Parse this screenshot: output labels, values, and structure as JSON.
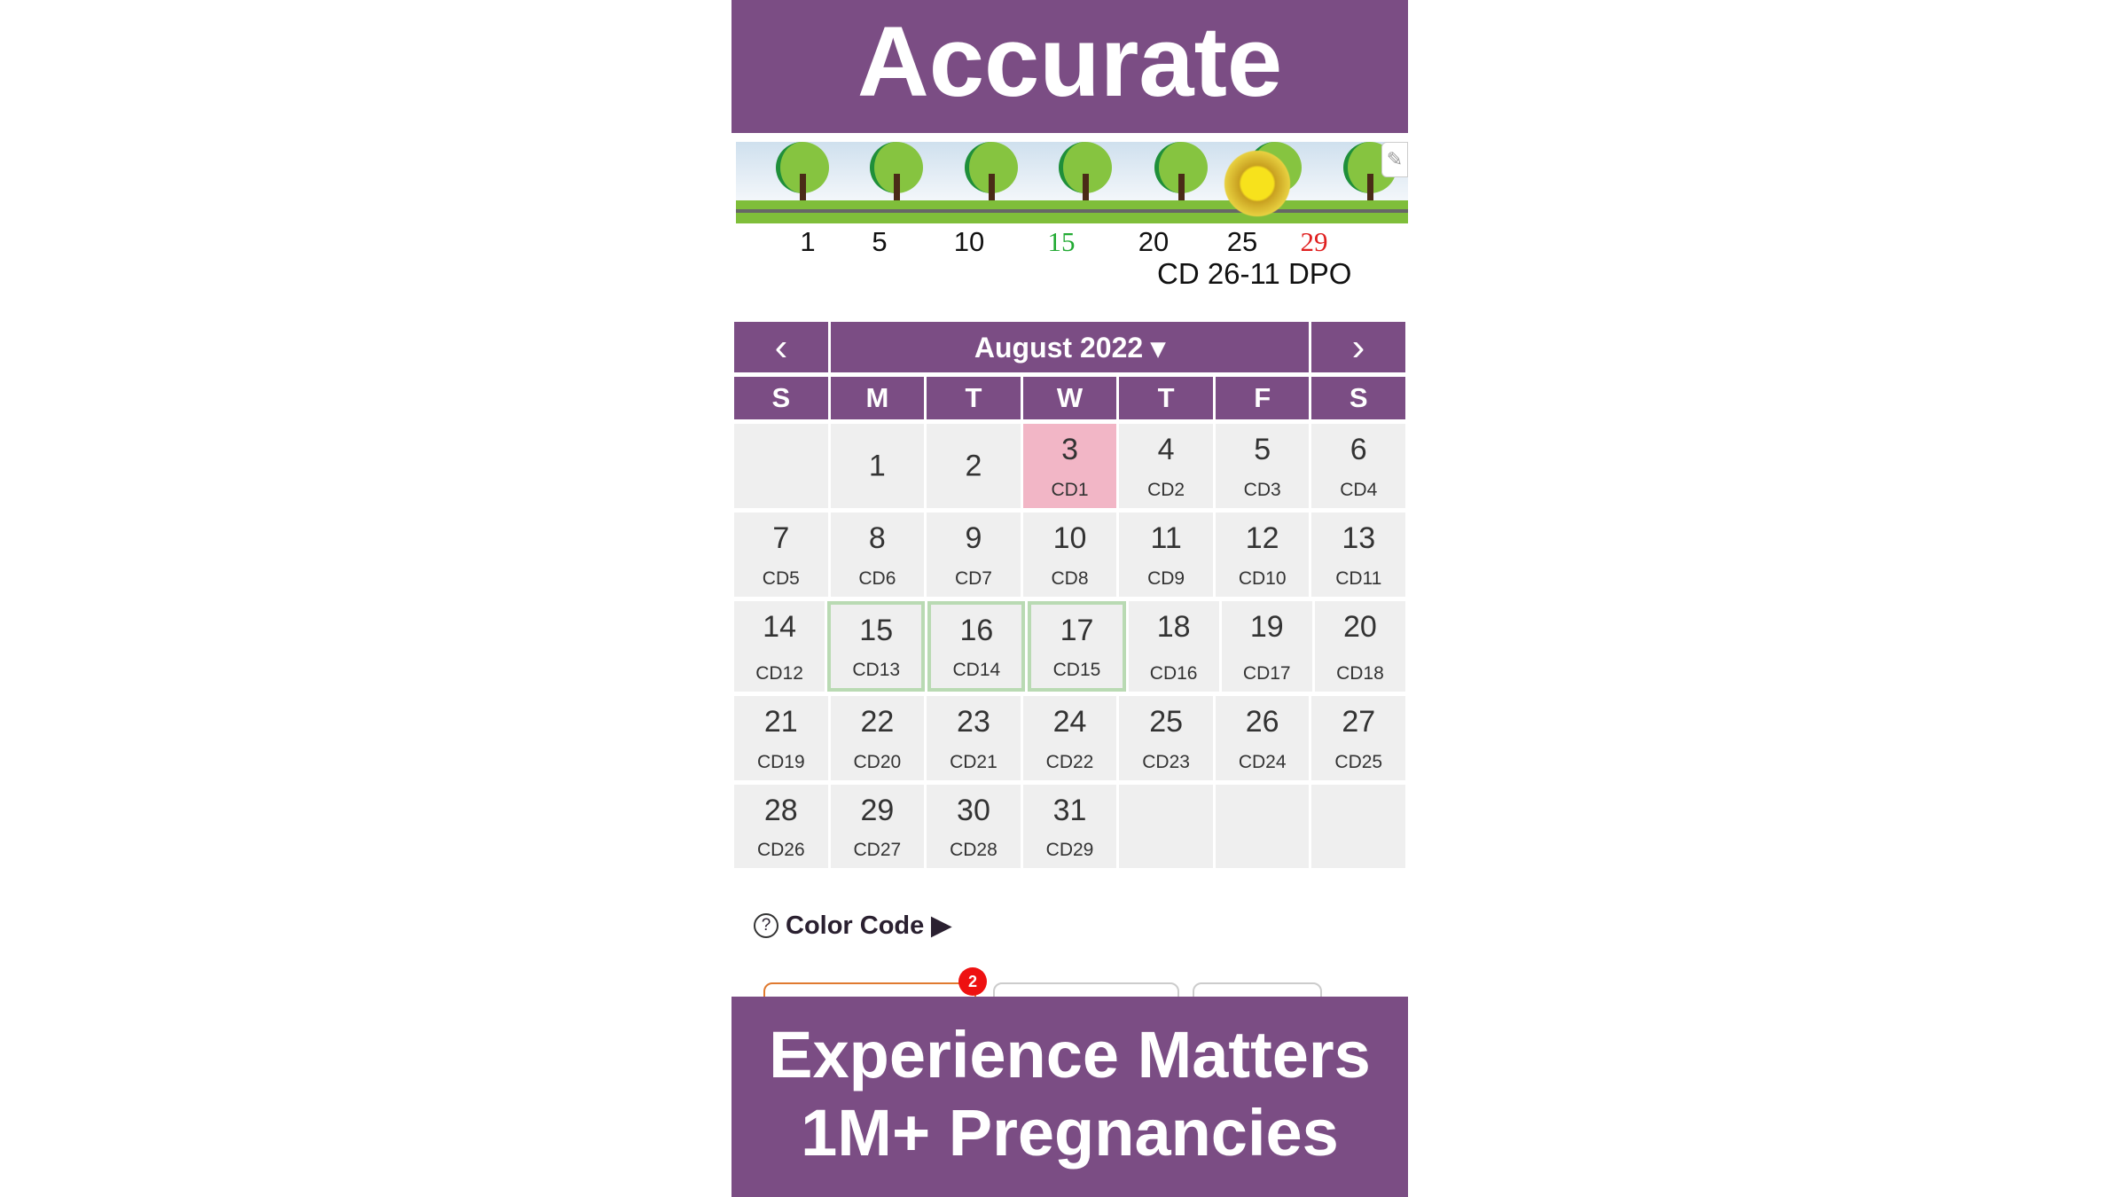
{
  "top_banner": "Accurate",
  "bottom_banner": {
    "line1": "Experience Matters",
    "line2": "1M+ Pregnancies"
  },
  "cycle_strip": {
    "ticks": [
      {
        "label": "1",
        "color": "#111111"
      },
      {
        "label": "5",
        "color": "#111111"
      },
      {
        "label": "10",
        "color": "#111111"
      },
      {
        "label": "15",
        "color": "#22aa33"
      },
      {
        "label": "20",
        "color": "#111111"
      },
      {
        "label": "25",
        "color": "#111111"
      },
      {
        "label": "29",
        "color": "#e02020"
      }
    ],
    "status": "CD 26-11 DPO",
    "edit_icon": "pencil-icon",
    "sun_icon": "sun-icon"
  },
  "calendar": {
    "month_label": "August 2022 ▾",
    "prev": "‹",
    "next": "›",
    "weekdays": [
      "S",
      "M",
      "T",
      "W",
      "T",
      "F",
      "S"
    ],
    "weeks": [
      [
        {
          "day": "",
          "cd": ""
        },
        {
          "day": "1",
          "cd": ""
        },
        {
          "day": "2",
          "cd": ""
        },
        {
          "day": "3",
          "cd": "CD1",
          "style": "pink"
        },
        {
          "day": "4",
          "cd": "CD2"
        },
        {
          "day": "5",
          "cd": "CD3"
        },
        {
          "day": "6",
          "cd": "CD4"
        }
      ],
      [
        {
          "day": "7",
          "cd": "CD5"
        },
        {
          "day": "8",
          "cd": "CD6"
        },
        {
          "day": "9",
          "cd": "CD7"
        },
        {
          "day": "10",
          "cd": "CD8"
        },
        {
          "day": "11",
          "cd": "CD9"
        },
        {
          "day": "12",
          "cd": "CD10"
        },
        {
          "day": "13",
          "cd": "CD11"
        }
      ],
      [
        {
          "day": "14",
          "cd": "CD12"
        },
        {
          "day": "15",
          "cd": "CD13",
          "style": "fertile"
        },
        {
          "day": "16",
          "cd": "CD14",
          "style": "fertile"
        },
        {
          "day": "17",
          "cd": "CD15",
          "style": "fertile"
        },
        {
          "day": "18",
          "cd": "CD16"
        },
        {
          "day": "19",
          "cd": "CD17"
        },
        {
          "day": "20",
          "cd": "CD18"
        }
      ],
      [
        {
          "day": "21",
          "cd": "CD19"
        },
        {
          "day": "22",
          "cd": "CD20"
        },
        {
          "day": "23",
          "cd": "CD21"
        },
        {
          "day": "24",
          "cd": "CD22"
        },
        {
          "day": "25",
          "cd": "CD23"
        },
        {
          "day": "26",
          "cd": "CD24"
        },
        {
          "day": "27",
          "cd": "CD25"
        }
      ],
      [
        {
          "day": "28",
          "cd": "CD26"
        },
        {
          "day": "29",
          "cd": "CD27"
        },
        {
          "day": "30",
          "cd": "CD28"
        },
        {
          "day": "31",
          "cd": "CD29"
        },
        {
          "day": "",
          "cd": ""
        },
        {
          "day": "",
          "cd": ""
        },
        {
          "day": "",
          "cd": ""
        }
      ]
    ]
  },
  "color_code": {
    "label": "Color Code ▶",
    "help": "?"
  },
  "tabs": {
    "badge": "2"
  },
  "colors": {
    "brand": "#7b4d84",
    "period": "#f2b6c6",
    "fertile": "#b9dab3"
  }
}
